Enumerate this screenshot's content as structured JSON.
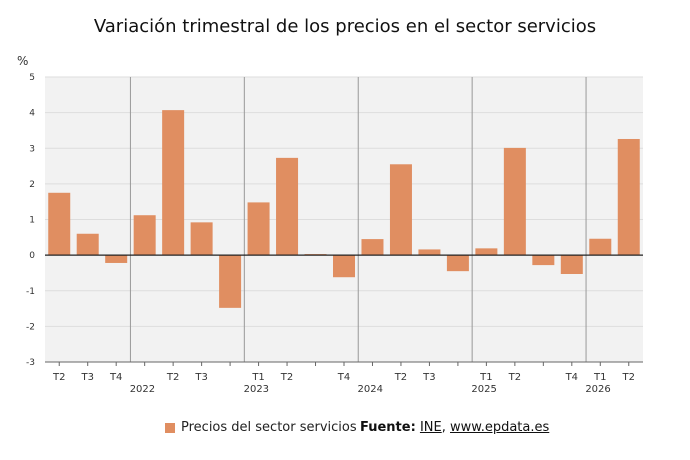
{
  "title": "Variación trimestral de los precios en el sector servicios",
  "unit_label": "%",
  "legend": {
    "series_label": "Precios del sector servicios"
  },
  "source": {
    "prefix": "Fuente:",
    "org": "INE",
    "separator": ",",
    "site": "www.epdata.es"
  },
  "colors": {
    "bar": "#e08e61",
    "plot_bg": "#f2f2f2",
    "zero_line": "#222222",
    "grid": "#dddddd",
    "year_sep": "#999999"
  },
  "chart_data": {
    "type": "bar",
    "title": "Variación trimestral de los precios en el sector servicios",
    "ylabel": "%",
    "ylim": [
      -3,
      5
    ],
    "yticks": [
      -3,
      -2,
      -1,
      0,
      1,
      2,
      3,
      4,
      5
    ],
    "grid": true,
    "legend_position": "bottom",
    "categories": [
      "T2",
      "T3",
      "T4",
      "T1",
      "T2",
      "T3",
      "T4",
      "T1",
      "T2",
      "T3",
      "T4",
      "T1",
      "T2",
      "T3",
      "T4",
      "T1",
      "T2",
      "T3",
      "T4",
      "T1",
      "T2"
    ],
    "tick_labels": [
      "T2",
      "T3",
      "T4",
      "",
      "T2",
      "T3",
      "",
      "T1",
      "T2",
      "",
      "T4",
      "",
      "T2",
      "T3",
      "",
      "T1",
      "T2",
      "",
      "T4",
      "T1",
      "T2"
    ],
    "year_labels": [
      {
        "index": 3,
        "label": "2022"
      },
      {
        "index": 7,
        "label": "2023"
      },
      {
        "index": 11,
        "label": "2024"
      },
      {
        "index": 15,
        "label": "2025"
      },
      {
        "index": 19,
        "label": "2026"
      }
    ],
    "series": [
      {
        "name": "Precios del sector servicios",
        "values": [
          1.75,
          0.6,
          -0.22,
          1.12,
          4.07,
          0.92,
          -1.48,
          1.48,
          2.73,
          0.03,
          -0.62,
          0.45,
          2.55,
          0.16,
          -0.45,
          0.19,
          3.01,
          -0.28,
          -0.53,
          0.46,
          3.26
        ]
      }
    ]
  }
}
